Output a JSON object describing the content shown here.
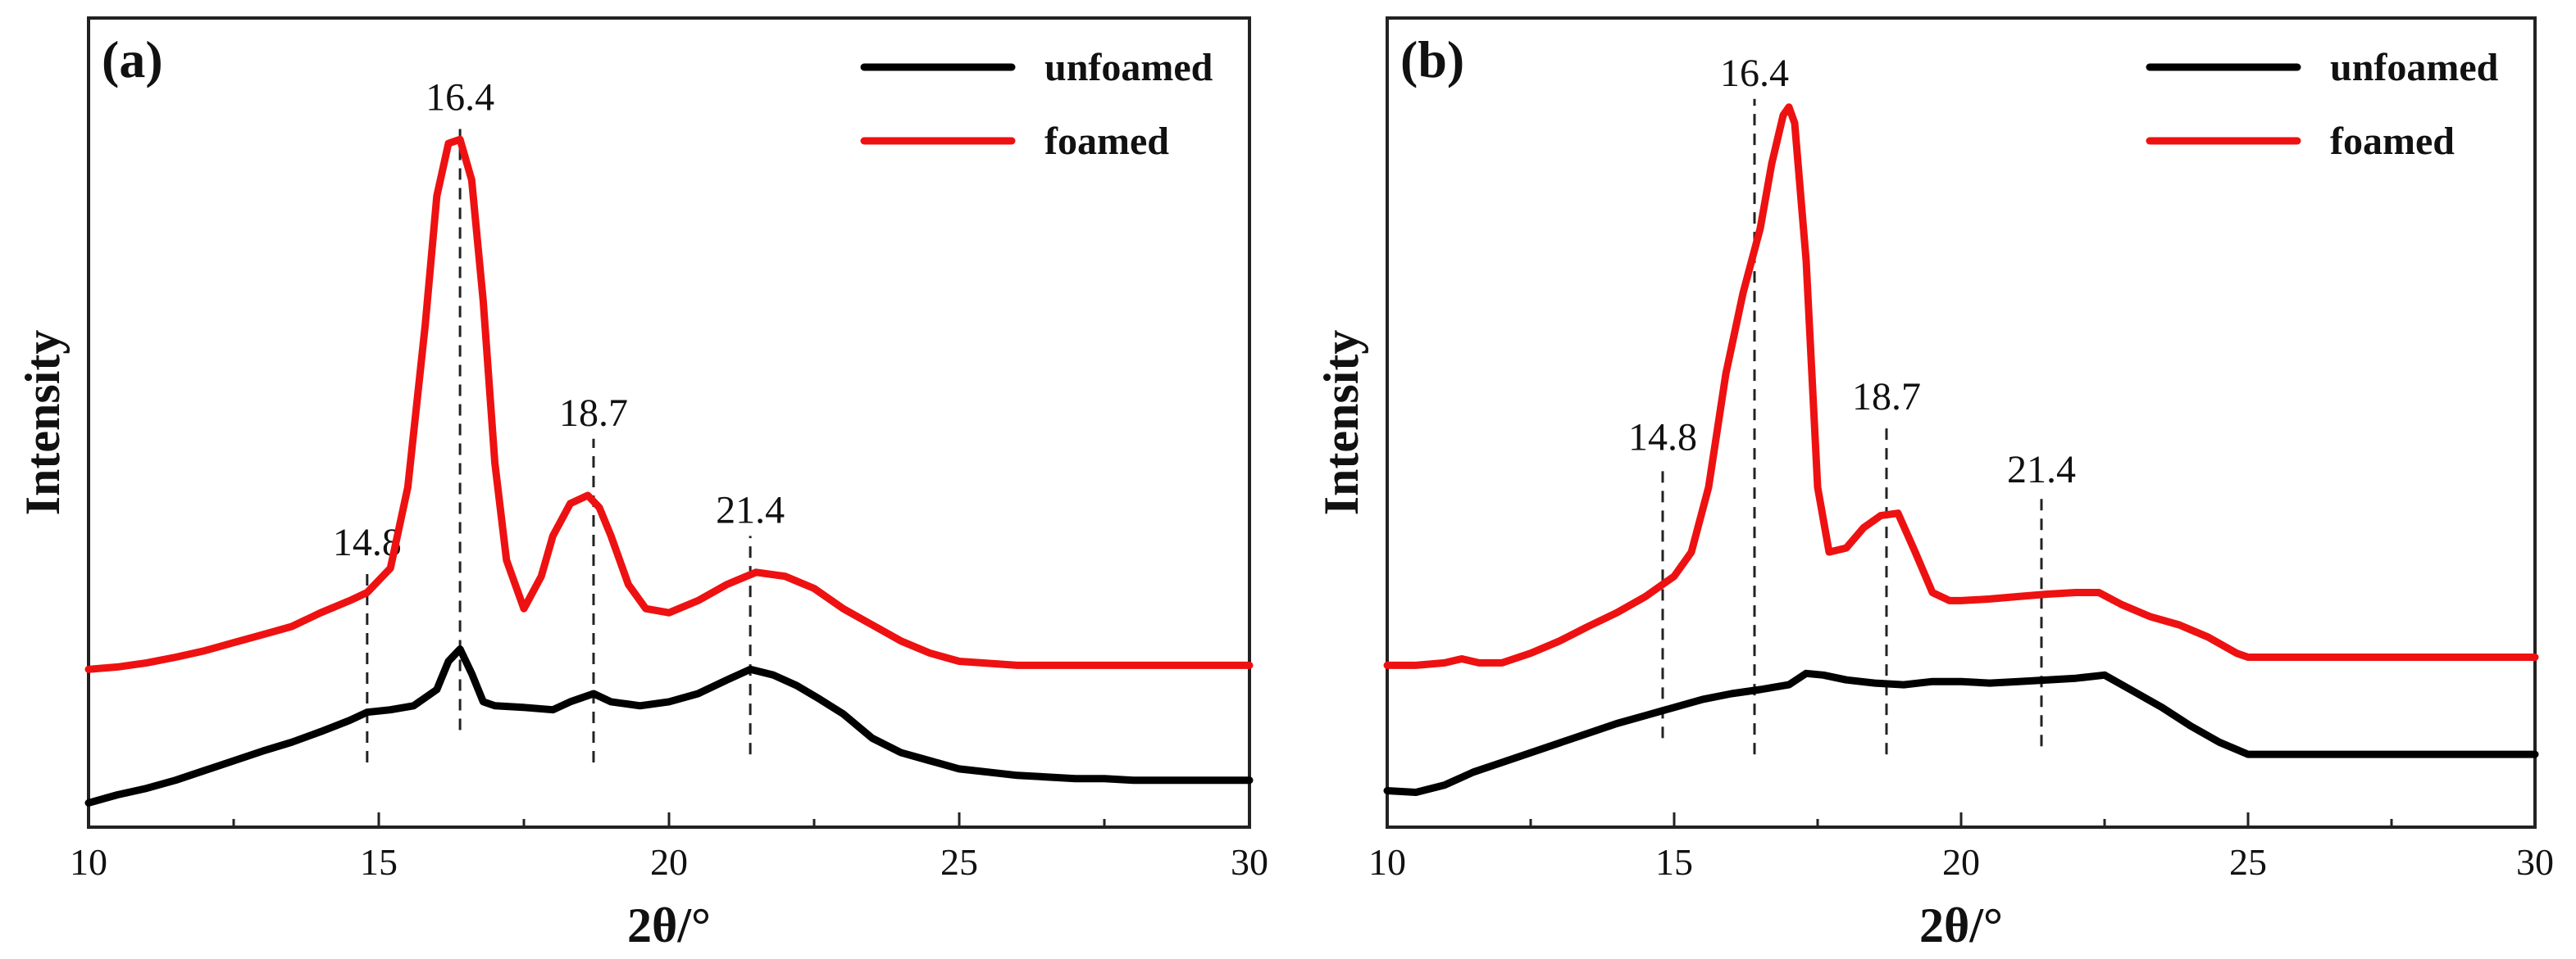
{
  "chart_data": [
    {
      "panel_label": "(a)",
      "type": "line",
      "xlabel": "2θ/°",
      "ylabel": "Intensity",
      "xlim": [
        10,
        30
      ],
      "ylim": [
        0,
        1
      ],
      "xticks": [
        "10",
        "15",
        "20",
        "25",
        "30"
      ],
      "legend": {
        "position": "top-right",
        "entries": [
          "unfoamed",
          "foamed"
        ]
      },
      "peaks": [
        {
          "x": 14.8,
          "label": "14.8",
          "line_y": [
            0.08,
            0.32
          ]
        },
        {
          "x": 16.4,
          "label": "16.4",
          "line_y": [
            0.12,
            0.87
          ]
        },
        {
          "x": 18.7,
          "label": "18.7",
          "line_y": [
            0.08,
            0.48
          ]
        },
        {
          "x": 21.4,
          "label": "21.4",
          "line_y": [
            0.09,
            0.36
          ]
        }
      ],
      "series": [
        {
          "name": "unfoamed",
          "color": "#000000",
          "x": [
            10.0,
            10.5,
            11.0,
            11.5,
            12.0,
            12.5,
            13.0,
            13.5,
            14.0,
            14.5,
            14.8,
            15.2,
            15.6,
            16.0,
            16.2,
            16.4,
            16.6,
            16.8,
            17.0,
            17.5,
            18.0,
            18.3,
            18.7,
            19.0,
            19.5,
            20.0,
            20.5,
            21.0,
            21.4,
            21.8,
            22.2,
            22.6,
            23.0,
            23.5,
            24.0,
            24.5,
            25.0,
            25.5,
            26.0,
            26.5,
            27.0,
            27.5,
            28.0,
            29.0,
            30.0
          ],
          "y": [
            0.03,
            0.04,
            0.048,
            0.058,
            0.07,
            0.082,
            0.094,
            0.105,
            0.118,
            0.132,
            0.142,
            0.145,
            0.15,
            0.17,
            0.205,
            0.22,
            0.19,
            0.155,
            0.15,
            0.148,
            0.145,
            0.155,
            0.165,
            0.155,
            0.15,
            0.155,
            0.165,
            0.182,
            0.195,
            0.188,
            0.175,
            0.158,
            0.14,
            0.11,
            0.092,
            0.082,
            0.072,
            0.068,
            0.064,
            0.062,
            0.06,
            0.06,
            0.058,
            0.058,
            0.058
          ]
        },
        {
          "name": "foamed",
          "color": "#ee1111",
          "x": [
            10.0,
            10.5,
            11.0,
            11.5,
            12.0,
            12.5,
            13.0,
            13.5,
            14.0,
            14.5,
            14.8,
            15.2,
            15.5,
            15.8,
            16.0,
            16.2,
            16.4,
            16.6,
            16.8,
            17.0,
            17.2,
            17.5,
            17.8,
            18.0,
            18.3,
            18.6,
            18.8,
            19.0,
            19.3,
            19.6,
            20.0,
            20.5,
            21.0,
            21.5,
            22.0,
            22.5,
            23.0,
            23.5,
            24.0,
            24.5,
            25.0,
            26.0,
            27.0,
            28.0,
            29.0,
            30.0
          ],
          "y": [
            0.195,
            0.198,
            0.203,
            0.21,
            0.218,
            0.228,
            0.238,
            0.248,
            0.265,
            0.28,
            0.29,
            0.32,
            0.42,
            0.62,
            0.78,
            0.845,
            0.85,
            0.8,
            0.65,
            0.45,
            0.33,
            0.27,
            0.31,
            0.36,
            0.4,
            0.41,
            0.395,
            0.36,
            0.3,
            0.27,
            0.265,
            0.28,
            0.3,
            0.315,
            0.31,
            0.295,
            0.27,
            0.25,
            0.23,
            0.215,
            0.205,
            0.2,
            0.2,
            0.2,
            0.2,
            0.2
          ]
        }
      ]
    },
    {
      "panel_label": "(b)",
      "type": "line",
      "xlabel": "2θ/°",
      "ylabel": "Intensity",
      "xlim": [
        10,
        30
      ],
      "ylim": [
        0,
        1
      ],
      "xticks": [
        "10",
        "15",
        "20",
        "25",
        "30"
      ],
      "legend": {
        "position": "top-right",
        "entries": [
          "unfoamed",
          "foamed"
        ]
      },
      "peaks": [
        {
          "x": 14.8,
          "label": "14.8",
          "line_y": [
            0.11,
            0.45
          ]
        },
        {
          "x": 16.4,
          "label": "16.4",
          "line_y": [
            0.09,
            0.9
          ]
        },
        {
          "x": 18.7,
          "label": "18.7",
          "line_y": [
            0.09,
            0.5
          ]
        },
        {
          "x": 21.4,
          "label": "21.4",
          "line_y": [
            0.1,
            0.41
          ]
        }
      ],
      "series": [
        {
          "name": "unfoamed",
          "color": "#000000",
          "x": [
            10.0,
            10.5,
            11.0,
            11.5,
            12.0,
            12.5,
            13.0,
            13.5,
            14.0,
            14.5,
            15.0,
            15.5,
            16.0,
            16.5,
            17.0,
            17.3,
            17.6,
            18.0,
            18.5,
            19.0,
            19.5,
            20.0,
            20.5,
            21.0,
            21.5,
            22.0,
            22.5,
            23.0,
            23.5,
            24.0,
            24.5,
            25.0,
            26.0,
            27.0,
            28.0,
            29.0,
            30.0
          ],
          "y": [
            0.045,
            0.043,
            0.052,
            0.068,
            0.08,
            0.092,
            0.104,
            0.116,
            0.128,
            0.138,
            0.148,
            0.158,
            0.165,
            0.17,
            0.176,
            0.19,
            0.188,
            0.182,
            0.178,
            0.176,
            0.18,
            0.18,
            0.178,
            0.18,
            0.182,
            0.184,
            0.188,
            0.168,
            0.148,
            0.125,
            0.105,
            0.09,
            0.09,
            0.09,
            0.09,
            0.09,
            0.09
          ]
        },
        {
          "name": "foamed",
          "color": "#ee1111",
          "x": [
            10.0,
            10.5,
            11.0,
            11.3,
            11.6,
            12.0,
            12.5,
            13.0,
            13.5,
            14.0,
            14.5,
            15.0,
            15.3,
            15.6,
            15.9,
            16.2,
            16.5,
            16.7,
            16.9,
            17.0,
            17.1,
            17.3,
            17.5,
            17.7,
            18.0,
            18.3,
            18.6,
            18.9,
            19.2,
            19.5,
            19.8,
            20.0,
            20.5,
            21.0,
            21.5,
            22.0,
            22.4,
            22.8,
            23.3,
            23.8,
            24.3,
            24.8,
            25.0,
            26.0,
            27.0,
            28.0,
            29.0,
            30.0
          ],
          "y": [
            0.2,
            0.2,
            0.203,
            0.208,
            0.203,
            0.203,
            0.215,
            0.23,
            0.248,
            0.265,
            0.285,
            0.31,
            0.34,
            0.42,
            0.56,
            0.66,
            0.74,
            0.82,
            0.88,
            0.89,
            0.87,
            0.7,
            0.42,
            0.34,
            0.345,
            0.37,
            0.385,
            0.388,
            0.34,
            0.29,
            0.28,
            0.28,
            0.282,
            0.285,
            0.288,
            0.29,
            0.29,
            0.275,
            0.26,
            0.25,
            0.235,
            0.215,
            0.21,
            0.21,
            0.21,
            0.21,
            0.21,
            0.21
          ]
        }
      ]
    }
  ]
}
